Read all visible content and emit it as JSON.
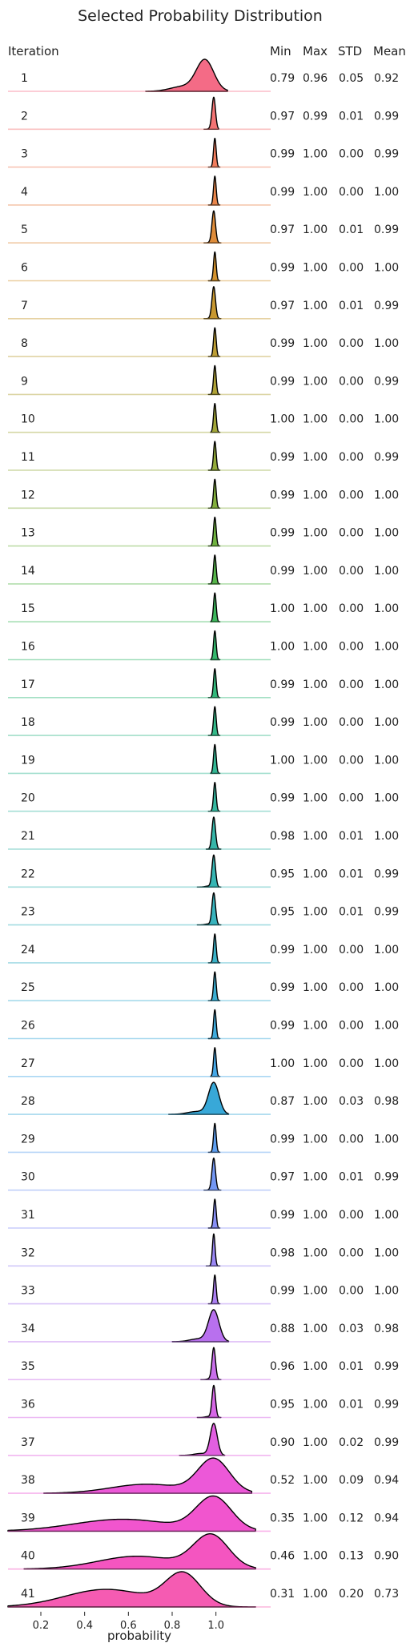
{
  "chart_data": {
    "type": "ridgeline",
    "title": "Selected Probability Distribution",
    "xlabel": "probability",
    "row_header": "Iteration",
    "stat_headers": [
      "Min",
      "Max",
      "STD",
      "Mean"
    ],
    "xlim": [
      0.05,
      1.25
    ],
    "xticks": [
      0.2,
      0.4,
      0.6,
      0.8,
      1.0
    ],
    "xtick_labels": [
      "0.2",
      "0.4",
      "0.6",
      "0.8",
      "1.0"
    ],
    "grid": false,
    "rows": [
      {
        "iteration": "1",
        "min": "0.79",
        "max": "0.96",
        "std": "0.05",
        "mean": "0.92",
        "color": "#f46b86"
      },
      {
        "iteration": "2",
        "min": "0.97",
        "max": "0.99",
        "std": "0.01",
        "mean": "0.99",
        "color": "#f47474"
      },
      {
        "iteration": "3",
        "min": "0.99",
        "max": "1.00",
        "std": "0.00",
        "mean": "0.99",
        "color": "#f07c5c"
      },
      {
        "iteration": "4",
        "min": "0.99",
        "max": "1.00",
        "std": "0.00",
        "mean": "1.00",
        "color": "#e8854a"
      },
      {
        "iteration": "5",
        "min": "0.97",
        "max": "1.00",
        "std": "0.01",
        "mean": "0.99",
        "color": "#de8c3a"
      },
      {
        "iteration": "6",
        "min": "0.99",
        "max": "1.00",
        "std": "0.00",
        "mean": "1.00",
        "color": "#d3922e"
      },
      {
        "iteration": "7",
        "min": "0.97",
        "max": "1.00",
        "std": "0.01",
        "mean": "0.99",
        "color": "#c89830"
      },
      {
        "iteration": "8",
        "min": "0.99",
        "max": "1.00",
        "std": "0.00",
        "mean": "1.00",
        "color": "#bc9d34"
      },
      {
        "iteration": "9",
        "min": "0.99",
        "max": "1.00",
        "std": "0.00",
        "mean": "0.99",
        "color": "#afa236"
      },
      {
        "iteration": "10",
        "min": "1.00",
        "max": "1.00",
        "std": "0.00",
        "mean": "1.00",
        "color": "#a2a638"
      },
      {
        "iteration": "11",
        "min": "0.99",
        "max": "1.00",
        "std": "0.00",
        "mean": "0.99",
        "color": "#93aa3a"
      },
      {
        "iteration": "12",
        "min": "0.99",
        "max": "1.00",
        "std": "0.00",
        "mean": "1.00",
        "color": "#82ae3c"
      },
      {
        "iteration": "13",
        "min": "0.99",
        "max": "1.00",
        "std": "0.00",
        "mean": "1.00",
        "color": "#6fb23f"
      },
      {
        "iteration": "14",
        "min": "0.99",
        "max": "1.00",
        "std": "0.00",
        "mean": "1.00",
        "color": "#56b54a"
      },
      {
        "iteration": "15",
        "min": "1.00",
        "max": "1.00",
        "std": "0.00",
        "mean": "1.00",
        "color": "#3db75c"
      },
      {
        "iteration": "16",
        "min": "1.00",
        "max": "1.00",
        "std": "0.00",
        "mean": "1.00",
        "color": "#34b86c"
      },
      {
        "iteration": "17",
        "min": "0.99",
        "max": "1.00",
        "std": "0.00",
        "mean": "1.00",
        "color": "#33b87b"
      },
      {
        "iteration": "18",
        "min": "0.99",
        "max": "1.00",
        "std": "0.00",
        "mean": "1.00",
        "color": "#33b888"
      },
      {
        "iteration": "19",
        "min": "1.00",
        "max": "1.00",
        "std": "0.00",
        "mean": "1.00",
        "color": "#34b794"
      },
      {
        "iteration": "20",
        "min": "0.99",
        "max": "1.00",
        "std": "0.00",
        "mean": "1.00",
        "color": "#35b79f"
      },
      {
        "iteration": "21",
        "min": "0.98",
        "max": "1.00",
        "std": "0.01",
        "mean": "1.00",
        "color": "#36b6a9"
      },
      {
        "iteration": "22",
        "min": "0.95",
        "max": "1.00",
        "std": "0.01",
        "mean": "0.99",
        "color": "#37b5b3"
      },
      {
        "iteration": "23",
        "min": "0.95",
        "max": "1.00",
        "std": "0.01",
        "mean": "0.99",
        "color": "#38b3bd"
      },
      {
        "iteration": "24",
        "min": "0.99",
        "max": "1.00",
        "std": "0.00",
        "mean": "1.00",
        "color": "#3ab1c7"
      },
      {
        "iteration": "25",
        "min": "0.99",
        "max": "1.00",
        "std": "0.00",
        "mean": "1.00",
        "color": "#3caed2"
      },
      {
        "iteration": "26",
        "min": "0.99",
        "max": "1.00",
        "std": "0.00",
        "mean": "1.00",
        "color": "#3fabdc"
      },
      {
        "iteration": "27",
        "min": "1.00",
        "max": "1.00",
        "std": "0.00",
        "mean": "1.00",
        "color": "#45a7e6"
      },
      {
        "iteration": "28",
        "min": "0.87",
        "max": "1.00",
        "std": "0.03",
        "mean": "0.98",
        "color": "#38a8d8"
      },
      {
        "iteration": "29",
        "min": "0.99",
        "max": "1.00",
        "std": "0.00",
        "mean": "1.00",
        "color": "#5e9ff0"
      },
      {
        "iteration": "30",
        "min": "0.97",
        "max": "1.00",
        "std": "0.01",
        "mean": "0.99",
        "color": "#7397f4"
      },
      {
        "iteration": "31",
        "min": "0.99",
        "max": "1.00",
        "std": "0.00",
        "mean": "1.00",
        "color": "#878ff5"
      },
      {
        "iteration": "32",
        "min": "0.98",
        "max": "1.00",
        "std": "0.00",
        "mean": "1.00",
        "color": "#9a87f4"
      },
      {
        "iteration": "33",
        "min": "0.99",
        "max": "1.00",
        "std": "0.00",
        "mean": "1.00",
        "color": "#ab7ff2"
      },
      {
        "iteration": "34",
        "min": "0.88",
        "max": "1.00",
        "std": "0.03",
        "mean": "0.98",
        "color": "#b870ee"
      },
      {
        "iteration": "35",
        "min": "0.96",
        "max": "1.00",
        "std": "0.01",
        "mean": "0.99",
        "color": "#c96feb"
      },
      {
        "iteration": "36",
        "min": "0.95",
        "max": "1.00",
        "std": "0.01",
        "mean": "0.99",
        "color": "#d667e6"
      },
      {
        "iteration": "37",
        "min": "0.90",
        "max": "1.00",
        "std": "0.02",
        "mean": "0.99",
        "color": "#e25fe0"
      },
      {
        "iteration": "38",
        "min": "0.52",
        "max": "1.00",
        "std": "0.09",
        "mean": "0.94",
        "color": "#ec58d8"
      },
      {
        "iteration": "39",
        "min": "0.35",
        "max": "1.00",
        "std": "0.12",
        "mean": "0.94",
        "color": "#f155ce"
      },
      {
        "iteration": "40",
        "min": "0.46",
        "max": "1.00",
        "std": "0.13",
        "mean": "0.90",
        "color": "#f455c0"
      },
      {
        "iteration": "41",
        "min": "0.31",
        "max": "1.00",
        "std": "0.20",
        "mean": "0.73",
        "color": "#f55bb2"
      }
    ]
  }
}
